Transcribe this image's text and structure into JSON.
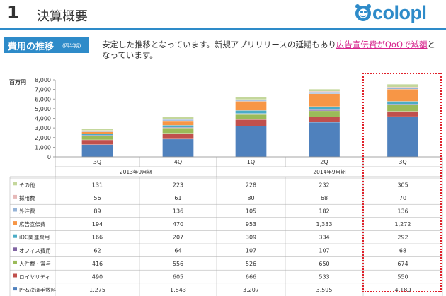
{
  "header": {
    "number": "1",
    "title": "決算概要",
    "logo_text": "colopl"
  },
  "section": {
    "badge": "費用の推移",
    "badge_sub": "(四半期)",
    "desc_before": "安定した推移となっています。新規アプリリリースの延期もあり",
    "desc_highlight": "広告宣伝費がQoQで減額",
    "desc_after": "となっています。"
  },
  "colors": {
    "その他": "#c4d79b",
    "採用費": "#e6b9b8",
    "外注費": "#95b3d7",
    "広告宣伝費": "#f79646",
    "iDC関連費用": "#4bacc6",
    "オフィス費用": "#8064a2",
    "人件費・賞与": "#9bbb59",
    "ロイヤリティ": "#c0504d",
    "PF&決済手数料": "#4f81bd"
  },
  "chart_data": {
    "type": "bar",
    "stacked": true,
    "unit_label": "百万円",
    "categories": [
      "3Q",
      "4Q",
      "1Q",
      "2Q",
      "3Q"
    ],
    "period_groups": [
      {
        "label": "2013年9月期",
        "span": 2
      },
      {
        "label": "2014年9月期",
        "span": 3
      }
    ],
    "ylim": [
      0,
      8000
    ],
    "yticks": [
      "8,000",
      "7,000",
      "6,000",
      "5,000",
      "4,000",
      "3,000",
      "2,000",
      "1,000",
      "0"
    ],
    "series": [
      {
        "name": "その他",
        "values": [
          131,
          223,
          228,
          232,
          305
        ],
        "labels": [
          "131",
          "223",
          "228",
          "232",
          "305"
        ]
      },
      {
        "name": "採用費",
        "values": [
          56,
          61,
          80,
          68,
          70
        ],
        "labels": [
          "56",
          "61",
          "80",
          "68",
          "70"
        ]
      },
      {
        "name": "外注費",
        "values": [
          89,
          136,
          105,
          182,
          136
        ],
        "labels": [
          "89",
          "136",
          "105",
          "182",
          "136"
        ]
      },
      {
        "name": "広告宣伝費",
        "values": [
          194,
          470,
          953,
          1333,
          1272
        ],
        "labels": [
          "194",
          "470",
          "953",
          "1,333",
          "1,272"
        ]
      },
      {
        "name": "iDC関連費用",
        "values": [
          166,
          207,
          309,
          334,
          292
        ],
        "labels": [
          "166",
          "207",
          "309",
          "334",
          "292"
        ]
      },
      {
        "name": "オフィス費用",
        "values": [
          62,
          64,
          107,
          107,
          68
        ],
        "labels": [
          "62",
          "64",
          "107",
          "107",
          "68"
        ]
      },
      {
        "name": "人件費・賞与",
        "values": [
          416,
          556,
          526,
          650,
          674
        ],
        "labels": [
          "416",
          "556",
          "526",
          "650",
          "674"
        ]
      },
      {
        "name": "ロイヤリティ",
        "values": [
          490,
          605,
          666,
          533,
          550
        ],
        "labels": [
          "490",
          "605",
          "666",
          "533",
          "550"
        ]
      },
      {
        "name": "PF&決済手数料",
        "values": [
          1275,
          1843,
          3207,
          3595,
          4180
        ],
        "labels": [
          "1,275",
          "1,843",
          "3,207",
          "3,595",
          "4,180"
        ]
      }
    ],
    "highlight_category_index": 4
  }
}
